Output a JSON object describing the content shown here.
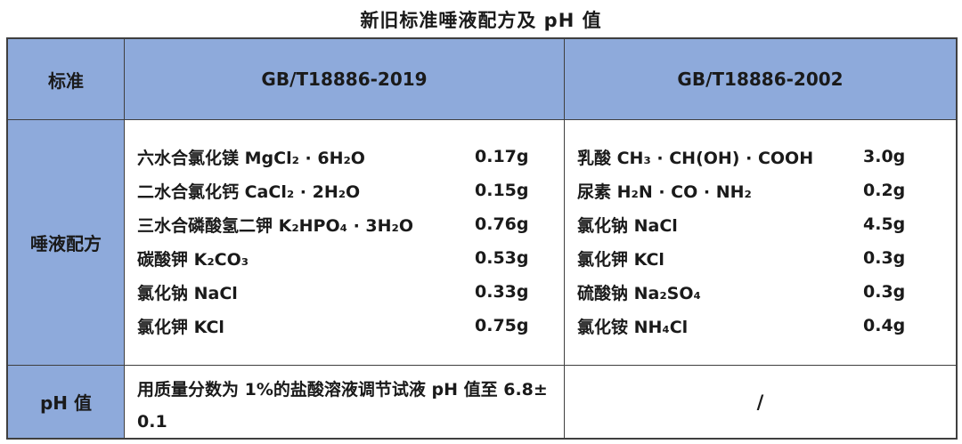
{
  "title": "新旧标准唾液配方及 pH 值",
  "colors": {
    "header_bg": "#8eaadb",
    "border": "#3f3f3f",
    "text": "#1a1a1a"
  },
  "header": {
    "standard": "标准",
    "gb2019": "GB/T18886-2019",
    "gb2002": "GB/T18886-2002"
  },
  "row_labels": {
    "formula": "唾液配方",
    "ph": "pH 值"
  },
  "formula": {
    "gb2019": [
      {
        "name": "六水合氯化镁 MgCl₂ · 6H₂O",
        "amount": "0.17g"
      },
      {
        "name": "二水合氯化钙 CaCl₂ · 2H₂O",
        "amount": "0.15g"
      },
      {
        "name": "三水合磷酸氢二钾 K₂HPO₄ · 3H₂O",
        "amount": "0.76g"
      },
      {
        "name": "碳酸钾 K₂CO₃",
        "amount": "0.53g"
      },
      {
        "name": "氯化钠 NaCl",
        "amount": "0.33g"
      },
      {
        "name": "氯化钾 KCl",
        "amount": "0.75g"
      }
    ],
    "gb2002": [
      {
        "name": "乳酸 CH₃ · CH(OH) · COOH",
        "amount": "3.0g"
      },
      {
        "name": "尿素 H₂N · CO · NH₂",
        "amount": "0.2g"
      },
      {
        "name": "氯化钠 NaCl",
        "amount": "4.5g"
      },
      {
        "name": "氯化钾 KCl",
        "amount": "0.3g"
      },
      {
        "name": "硫酸钠 Na₂SO₄",
        "amount": "0.3g"
      },
      {
        "name": "氯化铵 NH₄Cl",
        "amount": "0.4g"
      }
    ]
  },
  "ph": {
    "gb2019": "用质量分数为 1%的盐酸溶液调节试液 pH 值至 6.8± 0.1",
    "gb2002": "/"
  }
}
